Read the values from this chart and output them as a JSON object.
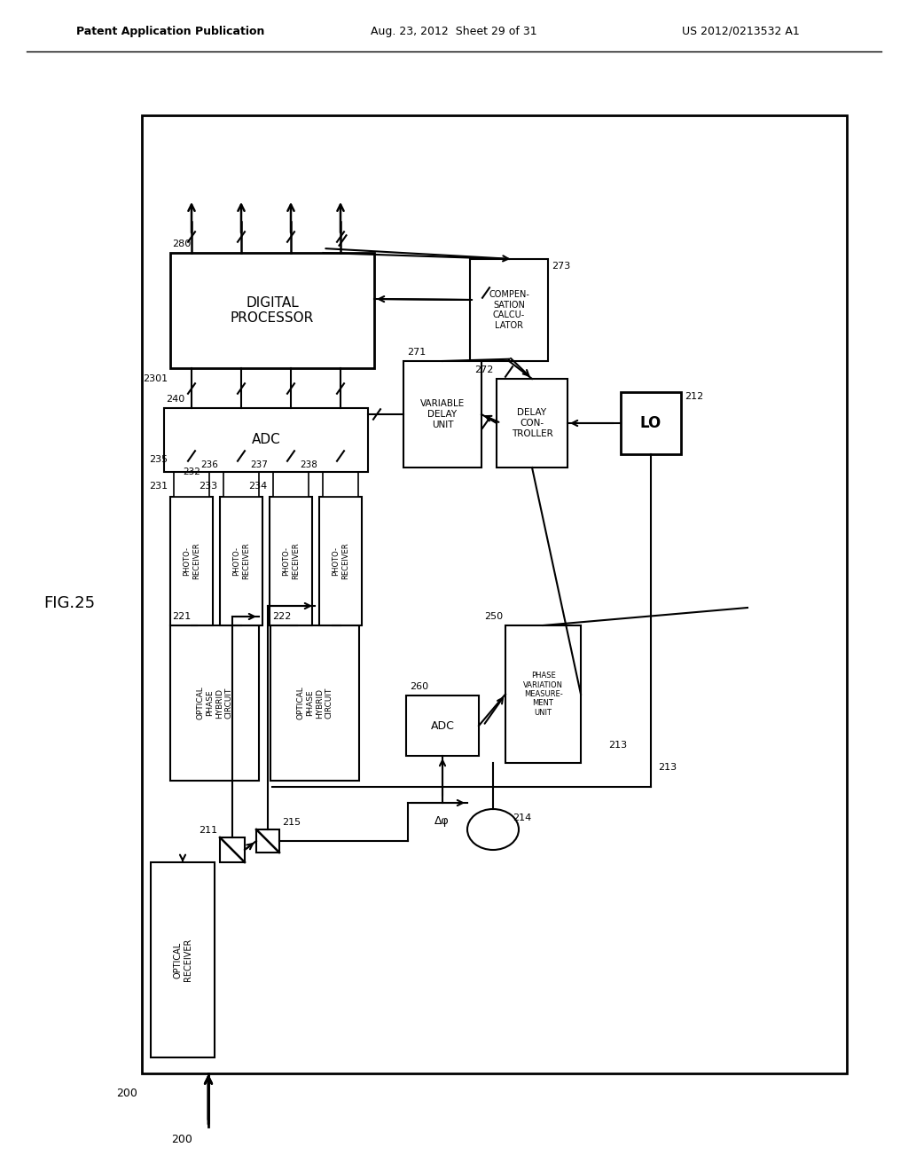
{
  "header_left": "Patent Application Publication",
  "header_mid": "Aug. 23, 2012  Sheet 29 of 31",
  "header_right": "US 2012/0213532 A1",
  "fig_label": "FIG.25",
  "bg_color": "#ffffff",
  "labels": {
    "200": "200",
    "211": "211",
    "212": "212",
    "213": "213",
    "214": "214",
    "215": "215",
    "221": "221",
    "222": "222",
    "231": "231",
    "232": "232",
    "233": "233",
    "234": "234",
    "235": "235",
    "236": "236",
    "237": "237",
    "238": "238",
    "240": "240",
    "250": "250",
    "260": "260",
    "271": "271",
    "272": "272",
    "273": "273",
    "280": "280",
    "2301": "2301"
  }
}
